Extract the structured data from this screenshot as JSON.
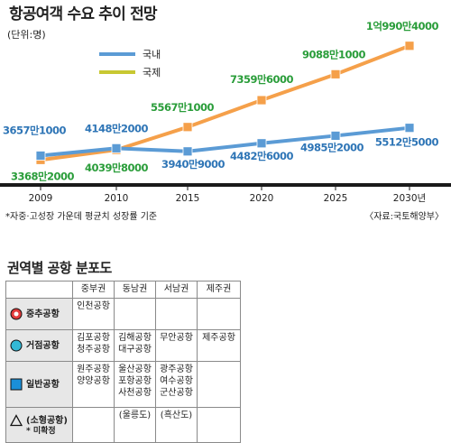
{
  "chart_data": {
    "type": "line",
    "title": "항공여객 수요 추이 전망",
    "subtitle": "(단위:명)",
    "categories": [
      "2009",
      "2010",
      "2015",
      "2020",
      "2025",
      "2030년"
    ],
    "series": [
      {
        "name": "국내",
        "color": "#5b9bd5",
        "values": [
          36571000,
          41482000,
          39409000,
          44826000,
          49852000,
          55125000
        ],
        "labels": [
          "3657만1000",
          "4148만2000",
          "3940만9000",
          "4482만6000",
          "4985만2000",
          "5512만5000"
        ],
        "label_color": "#2e75b6"
      },
      {
        "name": "국제",
        "color": "#f5a04a",
        "values": [
          33682000,
          40398000,
          55671000,
          73596000,
          90881000,
          109904000
        ],
        "labels": [
          "3368만2000",
          "4039만8000",
          "5567만1000",
          "7359만6000",
          "9088만1000",
          "1억990만4000"
        ],
        "label_color": "#2a9d3a"
      }
    ],
    "legend_entries": [
      {
        "name": "국내",
        "color": "#5b9bd5"
      },
      {
        "name": "국제",
        "color": "#c8c832"
      }
    ],
    "ylim": [
      20000000,
      120000000
    ],
    "grid": false,
    "legend_position": "top-left",
    "axis_color": "#222222"
  },
  "footnote": "*자중·고성장 가운데 평균치 성장률 기준",
  "source": "〈자료:국토해양부〉",
  "table": {
    "title": "권역별 공항 분포도",
    "headers": [
      "중부권",
      "동남권",
      "서남권",
      "제주권"
    ],
    "rows": [
      {
        "label": "중추공항",
        "symbol": "circle-red",
        "cells": [
          [
            "인천공항"
          ],
          [],
          [],
          []
        ]
      },
      {
        "label": "거점공항",
        "symbol": "circle-cyan",
        "cells": [
          [
            "김포공항",
            "청주공항"
          ],
          [
            "김해공항",
            "대구공항"
          ],
          [
            "무안공항"
          ],
          [
            "제주공항"
          ]
        ]
      },
      {
        "label": "일반공항",
        "symbol": "square-blue",
        "cells": [
          [
            "원주공항",
            "양양공항"
          ],
          [
            "울산공항",
            "포항공항",
            "사천공항"
          ],
          [
            "광주공항",
            "여수공항",
            "군산공항"
          ],
          []
        ]
      },
      {
        "label": "(소형공항)",
        "sublabel": "* 미확정",
        "symbol": "triangle",
        "cells": [
          [],
          [
            "(울릉도)"
          ],
          [
            "(흑산도)"
          ],
          []
        ]
      }
    ],
    "colors": {
      "circle_red": "#e23b3b",
      "circle_cyan": "#33b9d6",
      "square_blue": "#1a8fd8",
      "label_bg": "#e7e7e7"
    }
  }
}
